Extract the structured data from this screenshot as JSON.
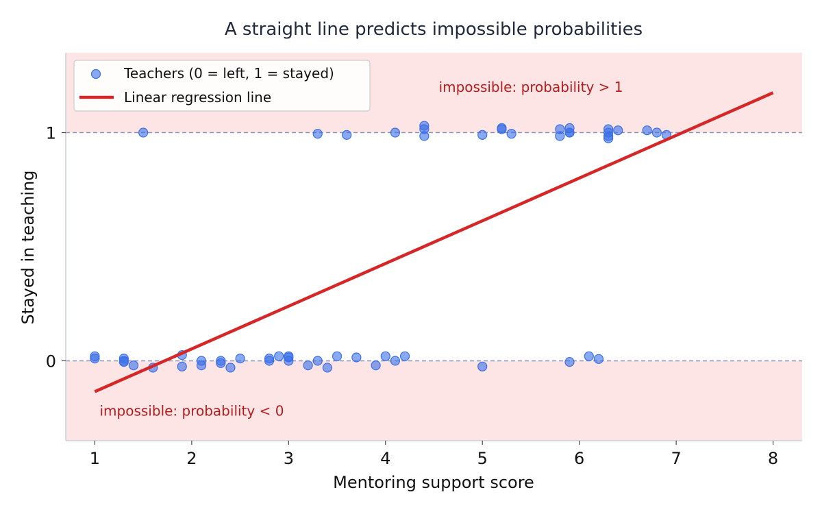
{
  "chart_data": {
    "type": "scatter",
    "title": "A straight line predicts impossible probabilities",
    "xlabel": "Mentoring support score",
    "ylabel": "Stayed in teaching",
    "xlim": [
      0.7,
      8.3
    ],
    "ylim": [
      -0.35,
      1.35
    ],
    "x_ticks": [
      1,
      2,
      3,
      4,
      5,
      6,
      7,
      8
    ],
    "y_ticks": [
      0,
      1
    ],
    "grid": false,
    "legend_position": "top-left",
    "colors": {
      "points": "#3b6fe8",
      "line": "#d62728",
      "impossible_region": "#fde5e5",
      "reference_line": "#8a94b5",
      "annotation": "#b71c1c"
    },
    "series": [
      {
        "name": "Teachers (0 = left, 1 = stayed)",
        "kind": "scatter",
        "points": [
          [
            1.0,
            0.02
          ],
          [
            1.0,
            0.01
          ],
          [
            1.3,
            0.01
          ],
          [
            1.3,
            0.0
          ],
          [
            1.3,
            -0.005
          ],
          [
            1.4,
            -0.02
          ],
          [
            1.6,
            -0.03
          ],
          [
            1.9,
            0.025
          ],
          [
            1.9,
            -0.025
          ],
          [
            2.1,
            0.0
          ],
          [
            2.1,
            -0.02
          ],
          [
            2.3,
            0.0
          ],
          [
            2.3,
            -0.01
          ],
          [
            2.4,
            -0.03
          ],
          [
            2.5,
            0.01
          ],
          [
            2.8,
            0.01
          ],
          [
            2.8,
            0.0
          ],
          [
            2.9,
            0.02
          ],
          [
            3.0,
            0.02
          ],
          [
            3.0,
            0.015
          ],
          [
            3.0,
            0.0
          ],
          [
            3.2,
            -0.02
          ],
          [
            3.3,
            0.0
          ],
          [
            3.4,
            -0.03
          ],
          [
            3.5,
            0.02
          ],
          [
            3.7,
            0.015
          ],
          [
            3.9,
            -0.02
          ],
          [
            4.0,
            0.02
          ],
          [
            4.1,
            0.0
          ],
          [
            4.2,
            0.02
          ],
          [
            5.0,
            -0.025
          ],
          [
            5.9,
            -0.005
          ],
          [
            6.1,
            0.02
          ],
          [
            6.2,
            0.008
          ],
          [
            1.5,
            1.0
          ],
          [
            3.3,
            0.995
          ],
          [
            3.6,
            0.99
          ],
          [
            4.1,
            1.0
          ],
          [
            4.4,
            1.03
          ],
          [
            4.4,
            1.015
          ],
          [
            4.4,
            0.985
          ],
          [
            5.0,
            0.99
          ],
          [
            5.2,
            1.02
          ],
          [
            5.2,
            1.015
          ],
          [
            5.3,
            0.995
          ],
          [
            5.8,
            1.015
          ],
          [
            5.8,
            0.985
          ],
          [
            5.9,
            1.02
          ],
          [
            5.9,
            1.0
          ],
          [
            5.9,
            1.0
          ],
          [
            6.3,
            1.015
          ],
          [
            6.3,
            1.0
          ],
          [
            6.3,
            0.985
          ],
          [
            6.3,
            0.975
          ],
          [
            6.4,
            1.01
          ],
          [
            6.7,
            1.01
          ],
          [
            6.8,
            1.0
          ],
          [
            6.9,
            0.99
          ]
        ]
      },
      {
        "name": "Linear regression line",
        "kind": "line",
        "points": [
          [
            1.0,
            -0.135
          ],
          [
            8.0,
            1.175
          ]
        ]
      }
    ],
    "reference_lines": [
      0,
      1
    ],
    "shaded_regions": [
      {
        "y_from": 1,
        "y_to": 1.35
      },
      {
        "y_from": -0.35,
        "y_to": 0
      }
    ],
    "annotations": [
      {
        "text": "impossible: probability > 1",
        "x": 4.55,
        "y": 1.2
      },
      {
        "text": "impossible: probability < 0",
        "x": 1.05,
        "y": -0.22
      }
    ]
  }
}
